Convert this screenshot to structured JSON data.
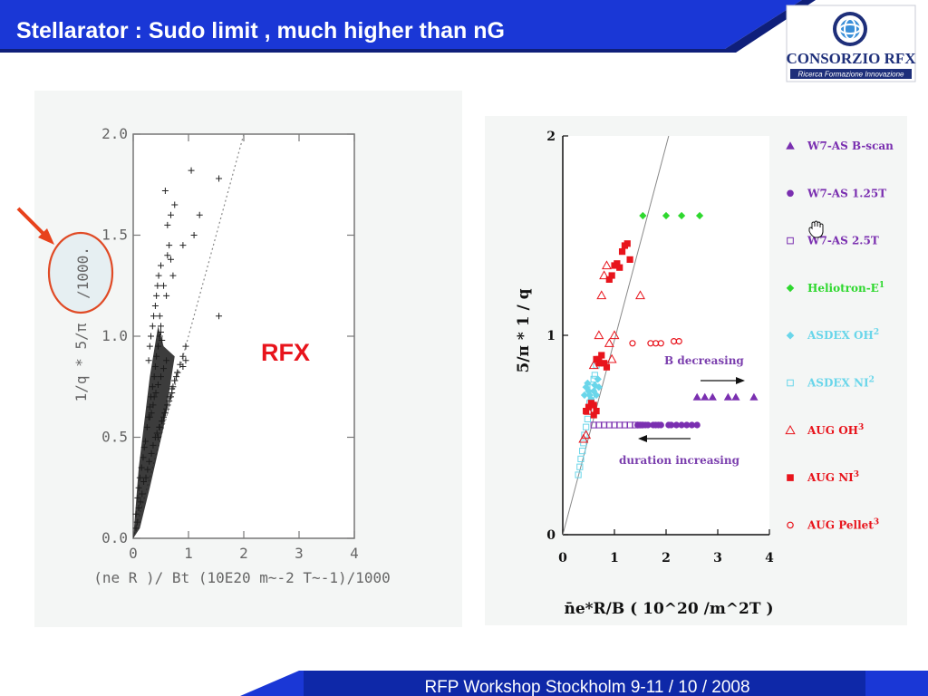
{
  "header": {
    "title": "Stellarator : Sudo limit , much higher than nG",
    "logo_name": "CONSORZIO RFX",
    "logo_tagline": "Ricerca Formazione Innovazione"
  },
  "footer": {
    "text": "RFP Workshop Stockholm 9-11 / 10 / 2008"
  },
  "annotations": {
    "rfx_label": "RFX"
  },
  "colors": {
    "banner": "#1a37d6",
    "accent_red": "#e8141c",
    "circle": "#e04a25",
    "logo_blue": "#1e2f7a"
  },
  "chart_data": [
    {
      "type": "scatter",
      "marker": "plus",
      "xlabel": "(ne R )/ Bt (10E20 m~-2 T~-1)/1000",
      "ylabel": "1/q * 5/π",
      "ylabel_suffix": "/1000.",
      "xlim": [
        0,
        4
      ],
      "ylim": [
        0,
        2
      ],
      "x_ticks": [
        "0",
        "1",
        "2",
        "3",
        "4"
      ],
      "y_ticks": [
        "0.0",
        "0.5",
        "1.0",
        "1.5",
        "2.0"
      ],
      "limit_line": {
        "style": "dotted",
        "x": [
          0,
          2
        ],
        "y": [
          0,
          2
        ]
      },
      "series": [
        {
          "x": [
            0.05,
            0.08,
            0.1,
            0.12,
            0.15,
            0.18,
            0.2,
            0.22,
            0.25,
            0.28,
            0.3,
            0.32,
            0.35,
            0.38,
            0.4,
            0.42,
            0.45,
            0.48,
            0.5,
            0.05,
            0.07,
            0.1,
            0.13,
            0.16,
            0.19,
            0.23,
            0.26,
            0.29,
            0.33,
            0.36,
            0.4,
            0.43,
            0.47,
            0.52,
            0.55,
            0.58,
            0.6,
            0.62,
            0.65,
            0.68,
            0.7,
            0.72,
            0.75,
            0.78,
            0.8,
            0.85,
            0.9,
            0.95,
            0.28,
            0.3,
            0.32,
            0.35,
            0.37,
            0.4,
            0.42,
            0.44,
            0.46,
            0.48,
            0.5,
            0.52,
            0.3,
            0.33,
            0.36,
            0.38,
            0.41,
            0.45,
            0.5,
            0.55,
            0.6,
            0.45,
            0.48,
            0.52,
            0.57,
            0.62,
            0.66,
            0.7,
            0.75,
            0.8,
            0.5,
            0.55,
            0.6,
            0.9,
            0.95,
            1.1,
            1.2,
            1.55,
            0.75,
            0.62,
            0.58,
            0.65,
            0.68,
            0.72
          ],
          "y": [
            0.12,
            0.2,
            0.25,
            0.3,
            0.35,
            0.4,
            0.45,
            0.48,
            0.55,
            0.6,
            0.65,
            0.7,
            0.75,
            0.8,
            0.85,
            0.9,
            0.95,
            1.0,
            1.02,
            0.05,
            0.08,
            0.15,
            0.18,
            0.22,
            0.28,
            0.3,
            0.34,
            0.38,
            0.42,
            0.46,
            0.5,
            0.52,
            0.55,
            0.58,
            0.6,
            0.62,
            0.64,
            0.66,
            0.68,
            0.7,
            0.72,
            0.75,
            0.78,
            0.8,
            0.82,
            0.86,
            0.9,
            0.95,
            0.88,
            0.95,
            1.0,
            1.05,
            1.1,
            1.15,
            1.2,
            1.25,
            1.3,
            1.1,
            1.05,
            0.98,
            0.6,
            0.62,
            0.66,
            0.7,
            0.72,
            0.76,
            0.8,
            0.84,
            0.88,
            0.5,
            0.55,
            0.58,
            0.62,
            0.66,
            0.7,
            0.74,
            0.78,
            0.82,
            1.35,
            1.25,
            1.2,
            0.85,
            0.88,
            1.5,
            1.6,
            1.1,
            1.65,
            1.4,
            1.72,
            1.45,
            1.38,
            1.3
          ]
        },
        {
          "x": [
            1.05,
            1.55,
            0.68,
            0.62,
            0.9
          ],
          "y": [
            1.82,
            1.78,
            1.6,
            1.55,
            1.45
          ]
        }
      ]
    },
    {
      "type": "scatter",
      "xlabel": "n̄e*R/B ( 10^20 /m^2T )",
      "ylabel": "5/π * 1 / q",
      "xlim": [
        0,
        4
      ],
      "ylim": [
        0,
        2
      ],
      "x_ticks": [
        "0",
        "1",
        "2",
        "3",
        "4"
      ],
      "y_ticks": [
        "0",
        "1",
        "2"
      ],
      "limit_line": {
        "style": "solid",
        "x": [
          0,
          2.05
        ],
        "y": [
          0,
          2
        ]
      },
      "annotations": [
        "B decreasing",
        "duration increasing"
      ],
      "series": [
        {
          "name": "W7-AS B-scan",
          "marker": "triangle-filled",
          "color": "#7a2fb0",
          "x": [
            2.6,
            2.75,
            2.9,
            3.2,
            3.35,
            3.7
          ],
          "y": [
            0.69,
            0.69,
            0.69,
            0.69,
            0.69,
            0.69
          ]
        },
        {
          "name": "W7-AS 1.25T",
          "marker": "circle-filled",
          "color": "#7a2fb0",
          "x": [
            1.45,
            1.5,
            1.55,
            1.6,
            1.65,
            1.75,
            1.8,
            1.85,
            1.9,
            2.05,
            2.1,
            2.2,
            2.3,
            2.4,
            2.5,
            2.6
          ],
          "y": [
            0.55,
            0.55,
            0.55,
            0.55,
            0.55,
            0.55,
            0.55,
            0.55,
            0.55,
            0.55,
            0.55,
            0.55,
            0.55,
            0.55,
            0.55,
            0.55
          ]
        },
        {
          "name": "W7-AS 2.5T",
          "marker": "square-open",
          "color": "#7a2fb0",
          "x": [
            0.6,
            0.7,
            0.8,
            0.9,
            1.0,
            1.1,
            1.2,
            1.3,
            1.4,
            1.5
          ],
          "y": [
            0.55,
            0.55,
            0.55,
            0.55,
            0.55,
            0.55,
            0.55,
            0.55,
            0.55,
            0.55
          ]
        },
        {
          "name": "Heliotron-E",
          "name_superscript": "1",
          "marker": "diamond-filled",
          "color": "#2ed82e",
          "x": [
            1.55,
            2.0,
            2.3,
            2.65
          ],
          "y": [
            1.6,
            1.6,
            1.6,
            1.6
          ]
        },
        {
          "name": "ASDEX OH",
          "name_superscript": "2",
          "marker": "diamond-filled",
          "color": "#6ad6ea",
          "x": [
            0.42,
            0.45,
            0.48,
            0.5,
            0.52,
            0.55,
            0.58,
            0.6,
            0.62,
            0.65,
            0.68,
            0.7
          ],
          "y": [
            0.7,
            0.74,
            0.76,
            0.72,
            0.7,
            0.68,
            0.66,
            0.72,
            0.75,
            0.7,
            0.78,
            0.74
          ]
        },
        {
          "name": "ASDEX NI",
          "name_superscript": "2",
          "marker": "square-open",
          "color": "#6ad6ea",
          "x": [
            0.3,
            0.33,
            0.35,
            0.38,
            0.4,
            0.42,
            0.45,
            0.48,
            0.5,
            0.52,
            0.55,
            0.58,
            0.6,
            0.62,
            0.65
          ],
          "y": [
            0.3,
            0.34,
            0.38,
            0.42,
            0.46,
            0.5,
            0.54,
            0.58,
            0.62,
            0.66,
            0.7,
            0.74,
            0.78,
            0.8,
            0.85
          ]
        },
        {
          "name": "AUG OH",
          "name_superscript": "3",
          "marker": "triangle-open",
          "color": "#e8141c",
          "x": [
            0.4,
            0.45,
            0.5,
            0.6,
            0.7,
            0.75,
            0.8,
            0.85,
            0.9,
            0.95,
            1.0,
            1.5
          ],
          "y": [
            0.48,
            0.5,
            0.62,
            0.85,
            1.0,
            1.2,
            1.3,
            1.35,
            0.96,
            0.88,
            1.0,
            1.2
          ]
        },
        {
          "name": "AUG NI",
          "name_superscript": "3",
          "marker": "square-filled",
          "color": "#e8141c",
          "x": [
            0.45,
            0.5,
            0.55,
            0.6,
            0.65,
            0.7,
            0.75,
            0.8,
            0.85,
            0.9,
            0.95,
            1.0,
            1.05,
            1.1,
            1.15,
            1.2,
            1.25,
            1.3,
            0.6,
            0.65,
            0.7
          ],
          "y": [
            0.62,
            0.64,
            0.66,
            0.65,
            0.88,
            0.86,
            0.9,
            0.86,
            0.84,
            1.28,
            1.3,
            1.35,
            1.36,
            1.34,
            1.42,
            1.45,
            1.46,
            1.38,
            0.6,
            0.62,
            0.88
          ]
        },
        {
          "name": "AUG Pellet",
          "name_superscript": "3",
          "marker": "circle-open",
          "color": "#e8141c",
          "x": [
            1.35,
            1.7,
            1.8,
            1.9,
            2.15,
            2.25
          ],
          "y": [
            0.96,
            0.96,
            0.96,
            0.96,
            0.97,
            0.97
          ]
        }
      ]
    }
  ]
}
